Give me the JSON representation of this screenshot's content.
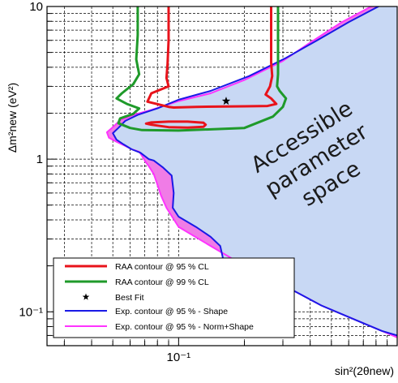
{
  "chart_data": {
    "type": "line",
    "title": "",
    "xlabel": "sin²(2θnew)",
    "ylabel": "Δm²new (eV²)",
    "x_scale": "log",
    "y_scale": "log",
    "xlim": [
      0.025,
      1.0
    ],
    "ylim": [
      0.06,
      10
    ],
    "grid": true,
    "x_tick_labels": [
      {
        "value": 0.1,
        "label": "10⁻¹"
      }
    ],
    "y_tick_labels": [
      {
        "value": 10,
        "label": "10"
      },
      {
        "value": 1,
        "label": "1"
      },
      {
        "value": 0.1,
        "label": "10⁻¹"
      }
    ],
    "annotation": [
      "Accessible",
      "parameter",
      "space"
    ],
    "legend_position": "bottom-left",
    "legend": [
      {
        "label": "RAA contour @ 95 % CL",
        "color": "#e8131b",
        "kind": "line"
      },
      {
        "label": "RAA contour @ 99 % CL",
        "color": "#1f9a2a",
        "kind": "line"
      },
      {
        "label": "Best Fit",
        "color": "#000000",
        "kind": "star"
      },
      {
        "label": "Exp. contour @ 95 % - Shape",
        "color": "#1a1ae6",
        "kind": "line"
      },
      {
        "label": "Exp. contour @ 95 % - Norm+Shape",
        "color": "#ff33ff",
        "kind": "line"
      }
    ],
    "best_fit": {
      "x": 0.165,
      "y": 2.4
    },
    "series": [
      {
        "id": "norm",
        "name": "Exp. contour @ 95 % - Norm+Shape",
        "color": "#ff33ff",
        "fill": "#f07ce6",
        "x": [
          0.76,
          0.55,
          0.4,
          0.3,
          0.2,
          0.14,
          0.1,
          0.075,
          0.062,
          0.054,
          0.05,
          0.047,
          0.048,
          0.052,
          0.057,
          0.061,
          0.066,
          0.068,
          0.07,
          0.071,
          0.073,
          0.077,
          0.08,
          0.083,
          0.088,
          0.1,
          0.14,
          0.2,
          0.3,
          0.45,
          0.65,
          0.85,
          1.0
        ],
        "y": [
          10,
          7.8,
          5.8,
          4.4,
          3.3,
          2.7,
          2.4,
          2.1,
          1.95,
          1.8,
          1.62,
          1.5,
          1.38,
          1.3,
          1.22,
          1.16,
          1.12,
          1.05,
          0.98,
          0.95,
          0.9,
          0.8,
          0.68,
          0.58,
          0.48,
          0.36,
          0.27,
          0.2,
          0.15,
          0.11,
          0.088,
          0.075,
          0.068
        ]
      },
      {
        "id": "shape",
        "name": "Exp. contour @ 95 % - Shape",
        "color": "#1a1ae6",
        "fill": "#c8d8f4",
        "x": [
          0.82,
          0.6,
          0.43,
          0.31,
          0.21,
          0.14,
          0.1,
          0.08,
          0.065,
          0.057,
          0.053,
          0.05,
          0.052,
          0.056,
          0.061,
          0.067,
          0.073,
          0.077,
          0.085,
          0.093,
          0.095,
          0.094,
          0.1,
          0.12,
          0.14,
          0.155,
          0.16,
          0.175,
          0.2,
          0.3,
          0.45,
          0.65,
          0.85,
          1.0
        ],
        "y": [
          10,
          7.9,
          6.0,
          4.6,
          3.5,
          2.8,
          2.45,
          2.15,
          1.95,
          1.78,
          1.6,
          1.48,
          1.34,
          1.25,
          1.16,
          1.1,
          1.0,
          0.98,
          0.88,
          0.78,
          0.6,
          0.48,
          0.42,
          0.36,
          0.31,
          0.27,
          0.22,
          0.2,
          0.19,
          0.15,
          0.11,
          0.088,
          0.075,
          0.07
        ]
      },
      {
        "id": "raa95_outer",
        "name": "RAA contour @ 95 % CL",
        "color": "#e8131b",
        "closed": false,
        "x": [
          0.09,
          0.09,
          0.089,
          0.088,
          0.09,
          0.075,
          0.072,
          0.09,
          0.095,
          0.12,
          0.2,
          0.255,
          0.28,
          0.265,
          0.25,
          0.262,
          0.268,
          0.265,
          0.265,
          0.265
        ],
        "y": [
          10,
          6.0,
          4.2,
          3.4,
          3.0,
          2.7,
          2.38,
          2.2,
          2.18,
          2.2,
          2.22,
          2.23,
          2.3,
          2.5,
          2.65,
          3.0,
          3.5,
          4.3,
          7.0,
          10
        ]
      },
      {
        "id": "raa95_inner",
        "name": "RAA contour @ 95 % CL",
        "color": "#e8131b",
        "closed": true,
        "x": [
          0.075,
          0.09,
          0.11,
          0.13,
          0.133,
          0.13,
          0.11,
          0.09,
          0.075,
          0.071
        ],
        "y": [
          1.68,
          1.62,
          1.61,
          1.63,
          1.68,
          1.73,
          1.76,
          1.76,
          1.74,
          1.71
        ]
      },
      {
        "id": "raa99",
        "name": "RAA contour @ 99 % CL",
        "color": "#1f9a2a",
        "closed": false,
        "x": [
          0.065,
          0.065,
          0.064,
          0.066,
          0.062,
          0.055,
          0.052,
          0.058,
          0.066,
          0.062,
          0.054,
          0.053,
          0.06,
          0.068,
          0.1,
          0.2,
          0.27,
          0.3,
          0.31,
          0.29,
          0.282,
          0.285,
          0.285,
          0.285,
          0.285
        ],
        "y": [
          10,
          6.5,
          4.5,
          3.6,
          3.1,
          2.7,
          2.5,
          2.3,
          2.15,
          1.98,
          1.85,
          1.72,
          1.6,
          1.55,
          1.54,
          1.6,
          1.9,
          2.2,
          2.5,
          2.8,
          3.0,
          3.6,
          4.6,
          7.0,
          10
        ]
      }
    ]
  }
}
